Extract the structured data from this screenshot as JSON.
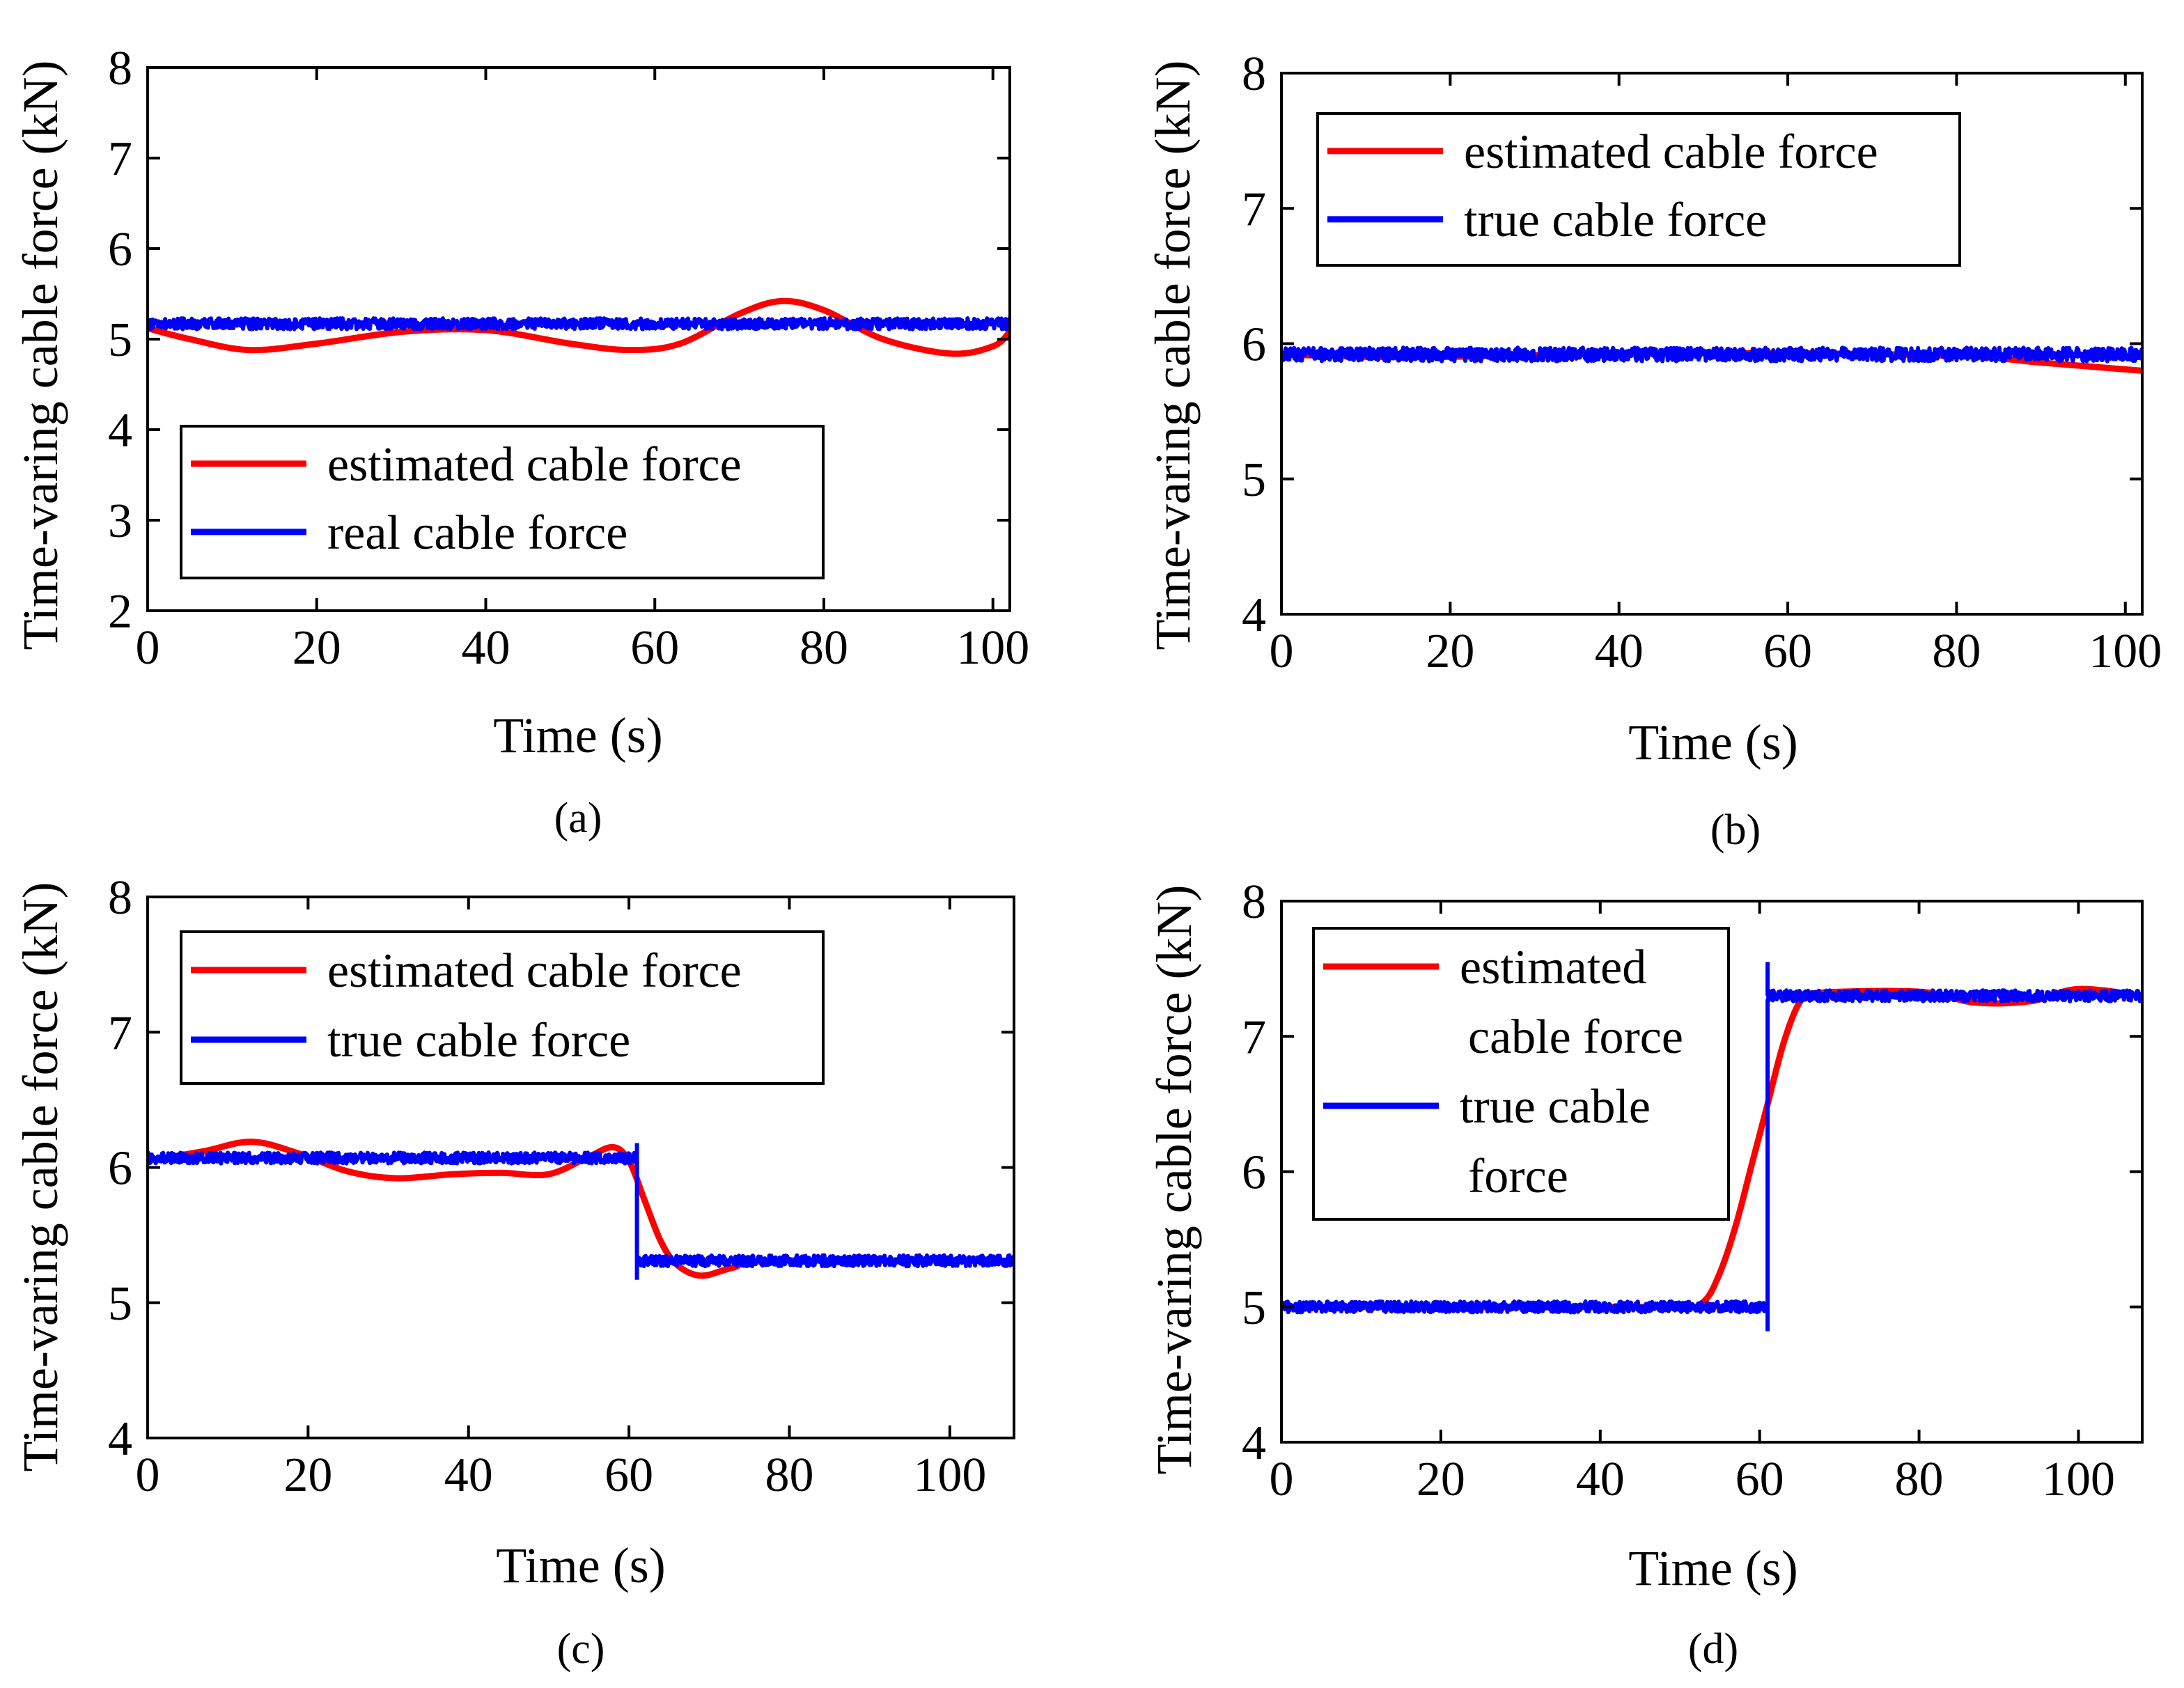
{
  "chart_data": [
    {
      "id": "a",
      "type": "line",
      "caption": "(a)",
      "xlabel": "Time (s)",
      "ylabel": "Time-varing cable force (kN)",
      "xlim": [
        0,
        102
      ],
      "ylim": [
        2,
        8
      ],
      "xticks": [
        0,
        20,
        40,
        60,
        80,
        100
      ],
      "yticks": [
        2,
        3,
        4,
        5,
        6,
        7,
        8
      ],
      "legend": {
        "position": "bottom-left",
        "entries": [
          {
            "lines": [
              "estimated cable force"
            ],
            "color": "#ff0000"
          },
          {
            "lines": [
              "real cable force"
            ],
            "color": "#0000ff"
          }
        ]
      },
      "series": [
        {
          "name": "estimated cable force",
          "color": "#ff0000",
          "noise": 0,
          "points": [
            [
              0,
              5.12
            ],
            [
              5,
              5.0
            ],
            [
              12,
              4.88
            ],
            [
              20,
              4.95
            ],
            [
              30,
              5.08
            ],
            [
              40,
              5.1
            ],
            [
              50,
              4.95
            ],
            [
              57,
              4.88
            ],
            [
              63,
              4.95
            ],
            [
              70,
              5.28
            ],
            [
              75,
              5.42
            ],
            [
              80,
              5.32
            ],
            [
              87,
              5.0
            ],
            [
              95,
              4.84
            ],
            [
              100,
              4.92
            ],
            [
              102,
              5.08
            ]
          ]
        },
        {
          "name": "real cable force",
          "color": "#0000ff",
          "noise": 0.06,
          "points": [
            [
              0,
              5.17
            ],
            [
              102,
              5.17
            ]
          ]
        }
      ]
    },
    {
      "id": "b",
      "type": "line",
      "caption": "(b)",
      "xlabel": "Time (s)",
      "ylabel": "Time-varing cable force (kN)",
      "xlim": [
        0,
        102
      ],
      "ylim": [
        4,
        8
      ],
      "xticks": [
        0,
        20,
        40,
        60,
        80,
        100
      ],
      "yticks": [
        4,
        5,
        6,
        7,
        8
      ],
      "legend": {
        "position": "top-left",
        "entries": [
          {
            "lines": [
              "estimated cable force"
            ],
            "color": "#ff0000"
          },
          {
            "lines": [
              "true cable force"
            ],
            "color": "#0000ff"
          }
        ]
      },
      "series": [
        {
          "name": "estimated cable force",
          "color": "#ff0000",
          "noise": 0,
          "points": [
            [
              0,
              5.92
            ],
            [
              15,
              5.9
            ],
            [
              35,
              5.92
            ],
            [
              55,
              5.93
            ],
            [
              80,
              5.91
            ],
            [
              90,
              5.86
            ],
            [
              102,
              5.8
            ]
          ]
        },
        {
          "name": "true cable force",
          "color": "#0000ff",
          "noise": 0.05,
          "points": [
            [
              0,
              5.92
            ],
            [
              102,
              5.92
            ]
          ]
        }
      ]
    },
    {
      "id": "c",
      "type": "line",
      "caption": "(c)",
      "xlabel": "Time (s)",
      "ylabel": "Time-varing cable force (kN)",
      "xlim": [
        0,
        108
      ],
      "ylim": [
        4,
        8
      ],
      "xticks": [
        0,
        20,
        40,
        60,
        80,
        100
      ],
      "yticks": [
        4,
        5,
        6,
        7,
        8
      ],
      "legend": {
        "position": "top-left",
        "entries": [
          {
            "lines": [
              "estimated cable force"
            ],
            "color": "#ff0000"
          },
          {
            "lines": [
              "true cable force"
            ],
            "color": "#0000ff"
          }
        ]
      },
      "series": [
        {
          "name": "estimated cable force",
          "color": "#ff0000",
          "noise": 0,
          "points": [
            [
              0,
              6.05
            ],
            [
              7,
              6.12
            ],
            [
              13,
              6.19
            ],
            [
              19,
              6.1
            ],
            [
              25,
              5.97
            ],
            [
              31,
              5.92
            ],
            [
              38,
              5.95
            ],
            [
              44,
              5.96
            ],
            [
              50,
              5.95
            ],
            [
              55,
              6.08
            ],
            [
              58,
              6.15
            ],
            [
              60,
              6.05
            ],
            [
              62,
              5.75
            ],
            [
              64,
              5.45
            ],
            [
              66,
              5.28
            ],
            [
              69,
              5.2
            ],
            [
              73,
              5.26
            ],
            [
              78,
              5.31
            ],
            [
              108,
              5.31
            ]
          ]
        },
        {
          "name": "true cable force",
          "color": "#0000ff",
          "noise": 0.04,
          "points": [
            [
              0,
              6.07
            ],
            [
              61,
              6.07
            ],
            [
              61,
              5.31
            ],
            [
              108,
              5.31
            ]
          ],
          "spikes": [
            [
              61,
              6.18
            ],
            [
              61,
              5.17
            ]
          ]
        }
      ]
    },
    {
      "id": "d",
      "type": "line",
      "caption": "(d)",
      "xlabel": "Time (s)",
      "ylabel": "Time-varing cable force (kN)",
      "xlim": [
        0,
        108
      ],
      "ylim": [
        4,
        8
      ],
      "xticks": [
        0,
        20,
        40,
        60,
        80,
        100
      ],
      "yticks": [
        4,
        5,
        6,
        7,
        8
      ],
      "legend": {
        "position": "top-left",
        "entries": [
          {
            "lines": [
              "estimated",
              "cable force"
            ],
            "color": "#ff0000"
          },
          {
            "lines": [
              "true cable",
              "force"
            ],
            "color": "#0000ff"
          }
        ]
      },
      "series": [
        {
          "name": "estimated cable force",
          "color": "#ff0000",
          "noise": 0,
          "points": [
            [
              0,
              5.0
            ],
            [
              50,
              5.0
            ],
            [
              53,
              5.04
            ],
            [
              55,
              5.25
            ],
            [
              57,
              5.6
            ],
            [
              59,
              6.05
            ],
            [
              61,
              6.5
            ],
            [
              63,
              6.95
            ],
            [
              65,
              7.25
            ],
            [
              67,
              7.32
            ],
            [
              80,
              7.33
            ],
            [
              87,
              7.25
            ],
            [
              94,
              7.26
            ],
            [
              100,
              7.35
            ],
            [
              108,
              7.3
            ]
          ]
        },
        {
          "name": "true cable force",
          "color": "#0000ff",
          "noise": 0.04,
          "points": [
            [
              0,
              5.0
            ],
            [
              61,
              5.0
            ],
            [
              61,
              7.3
            ],
            [
              108,
              7.3
            ]
          ],
          "spikes": [
            [
              61,
              4.82
            ],
            [
              61,
              7.55
            ]
          ]
        }
      ]
    }
  ]
}
